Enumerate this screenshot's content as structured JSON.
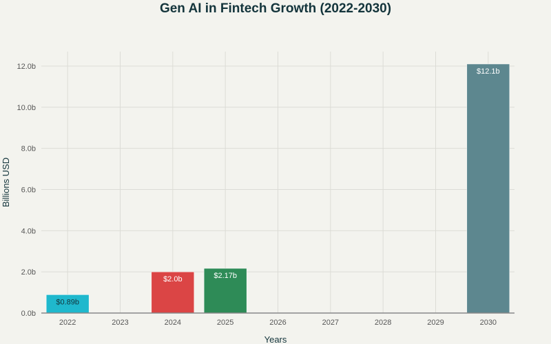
{
  "chart_data": {
    "type": "bar",
    "title": "Gen AI in Fintech Growth (2022-2030)",
    "xlabel": "Years",
    "ylabel": "Billions USD",
    "categories": [
      "2022",
      "2023",
      "2024",
      "2025",
      "2026",
      "2027",
      "2028",
      "2029",
      "2030"
    ],
    "values": [
      0.89,
      null,
      2.0,
      2.17,
      null,
      null,
      null,
      null,
      12.1
    ],
    "data_labels": [
      "$0.89b",
      "",
      "$2.0b",
      "$2.17b",
      "",
      "",
      "",
      "",
      "$12.1b"
    ],
    "colors": [
      "#1FB8CD",
      null,
      "#DB4545",
      "#2E8B57",
      null,
      null,
      null,
      null,
      "#5D878F"
    ],
    "label_colors": [
      "#13343b",
      null,
      "#ffffff",
      "#ffffff",
      null,
      null,
      null,
      null,
      "#ffffff"
    ],
    "yticks": [
      "0.0b",
      "2.0b",
      "4.0b",
      "6.0b",
      "8.0b",
      "10.0b",
      "12.0b"
    ],
    "ylim": [
      0,
      12.6
    ],
    "grid": true,
    "legend": "none"
  }
}
